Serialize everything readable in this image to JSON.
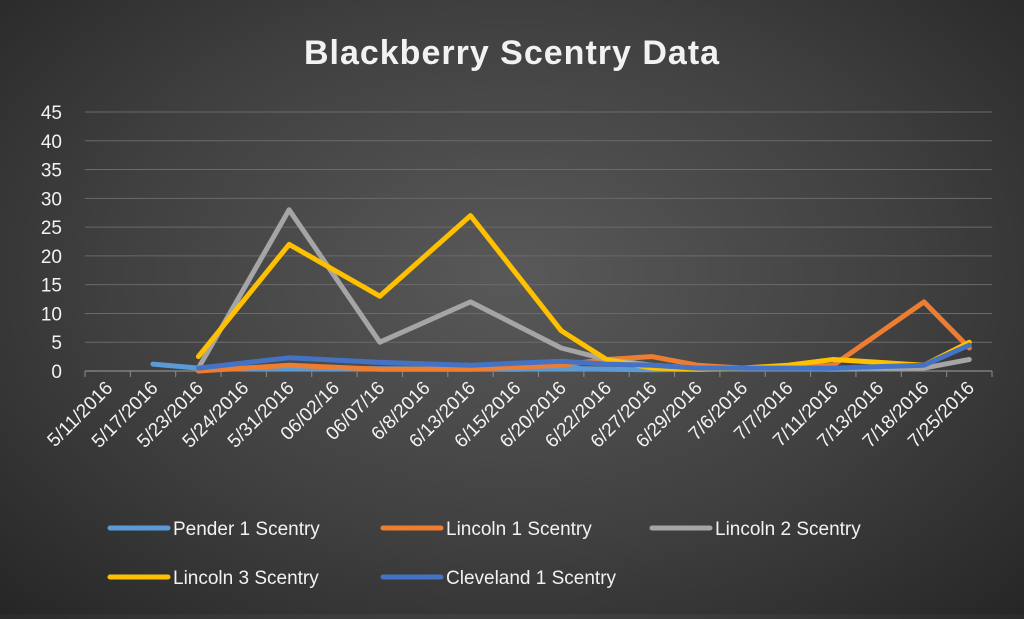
{
  "chart_data": {
    "type": "line",
    "title": "Blackberry Scentry Data",
    "xlabel": "",
    "ylabel": "",
    "ylim": [
      0,
      45
    ],
    "yticks": [
      0,
      5,
      10,
      15,
      20,
      25,
      30,
      35,
      40,
      45
    ],
    "grid": true,
    "legend_position": "bottom",
    "categories": [
      "5/11/2016",
      "5/17/2016",
      "5/23/2016",
      "5/24/2016",
      "5/31/2016",
      "06/02/16",
      "06/07/16",
      "6/8/2016",
      "6/13/2016",
      "6/15/2016",
      "6/20/2016",
      "6/22/2016",
      "6/27/2016",
      "6/29/2016",
      "7/6/2016",
      "7/7/2016",
      "7/11/2016",
      "7/13/2016",
      "7/18/2016",
      "7/25/2016"
    ],
    "series": [
      {
        "name": "Pender 1 Scentry",
        "color": "#5b9bd5",
        "values": [
          null,
          1.2,
          0.5,
          null,
          null,
          null,
          null,
          null,
          null,
          0.3,
          0.5,
          0.3,
          0.2,
          0.3,
          0.5,
          0.5,
          0.3,
          0.4,
          null,
          null
        ]
      },
      {
        "name": "Lincoln 1 Scentry",
        "color": "#ed7d31",
        "values": [
          null,
          null,
          0,
          null,
          1,
          null,
          0.3,
          null,
          0.3,
          null,
          1,
          2,
          2.5,
          1,
          0.5,
          0.5,
          1,
          null,
          12,
          4
        ]
      },
      {
        "name": "Lincoln 2 Scentry",
        "color": "#a5a5a5",
        "values": [
          null,
          null,
          0.5,
          null,
          28,
          null,
          5,
          null,
          12,
          null,
          4,
          2,
          1,
          0.5,
          0.5,
          0.5,
          0.5,
          null,
          0.5,
          2
        ]
      },
      {
        "name": "Lincoln 3 Scentry",
        "color": "#ffc000",
        "values": [
          null,
          null,
          2.5,
          null,
          22,
          null,
          13,
          null,
          27,
          null,
          7,
          2,
          0.5,
          0.3,
          0.5,
          1,
          2,
          null,
          1,
          5
        ]
      },
      {
        "name": "Cleveland 1 Scentry",
        "color": "#4472c4",
        "values": [
          null,
          null,
          0.5,
          null,
          2.3,
          null,
          1.5,
          null,
          1,
          null,
          1.7,
          1.2,
          1,
          0.5,
          0.5,
          0.5,
          0.5,
          null,
          1,
          4.5
        ]
      }
    ]
  }
}
